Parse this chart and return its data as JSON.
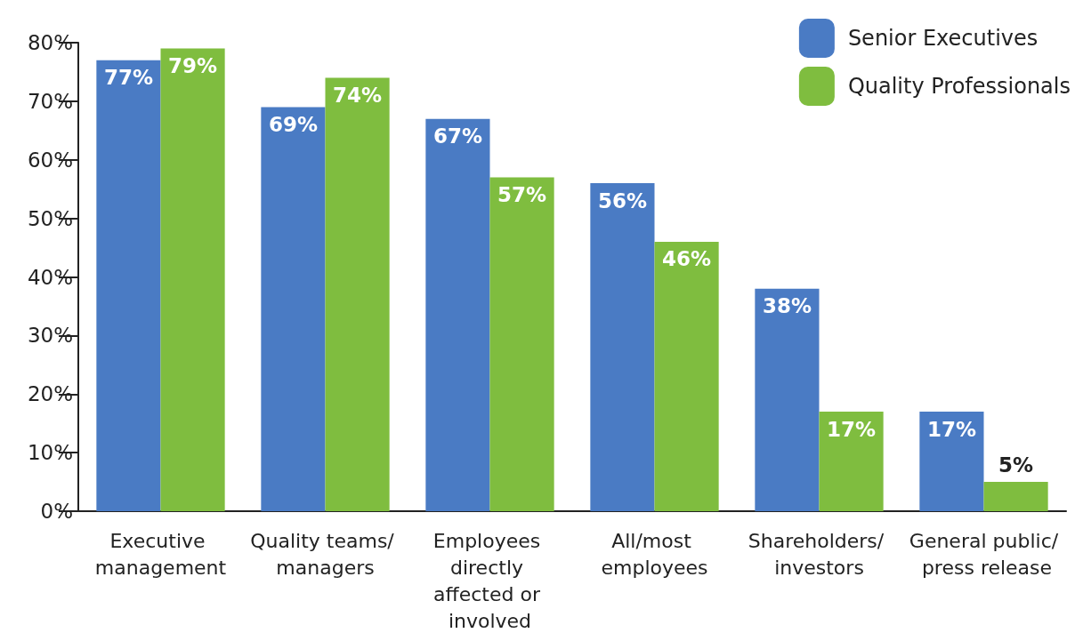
{
  "chart_data": {
    "type": "bar",
    "categories": [
      "Executive management",
      "Quality teams/ managers",
      "Employees directly affected or involved",
      "All/most employees",
      "Shareholders/ investors",
      "General public/ press release"
    ],
    "series": [
      {
        "name": "Senior Executives",
        "color": "#4a7bc4",
        "values": [
          77,
          69,
          67,
          56,
          38,
          17
        ],
        "value_labels": [
          "77%",
          "69%",
          "67%",
          "56%",
          "38%",
          "17%"
        ]
      },
      {
        "name": "Quality Professionals",
        "color": "#7fbd3f",
        "values": [
          79,
          74,
          57,
          46,
          17,
          5
        ],
        "value_labels": [
          "79%",
          "74%",
          "57%",
          "46%",
          "17%",
          "5%"
        ]
      }
    ],
    "ylim": [
      0,
      80
    ],
    "yticks": [
      {
        "value": 0,
        "label": "0%"
      },
      {
        "value": 10,
        "label": "10%"
      },
      {
        "value": 20,
        "label": "20%"
      },
      {
        "value": 30,
        "label": "30%"
      },
      {
        "value": 40,
        "label": "40%"
      },
      {
        "value": 50,
        "label": "50%"
      },
      {
        "value": 60,
        "label": "60%"
      },
      {
        "value": 70,
        "label": "70%"
      },
      {
        "value": 80,
        "label": "80%"
      }
    ],
    "grid": false,
    "legend": "top right"
  }
}
